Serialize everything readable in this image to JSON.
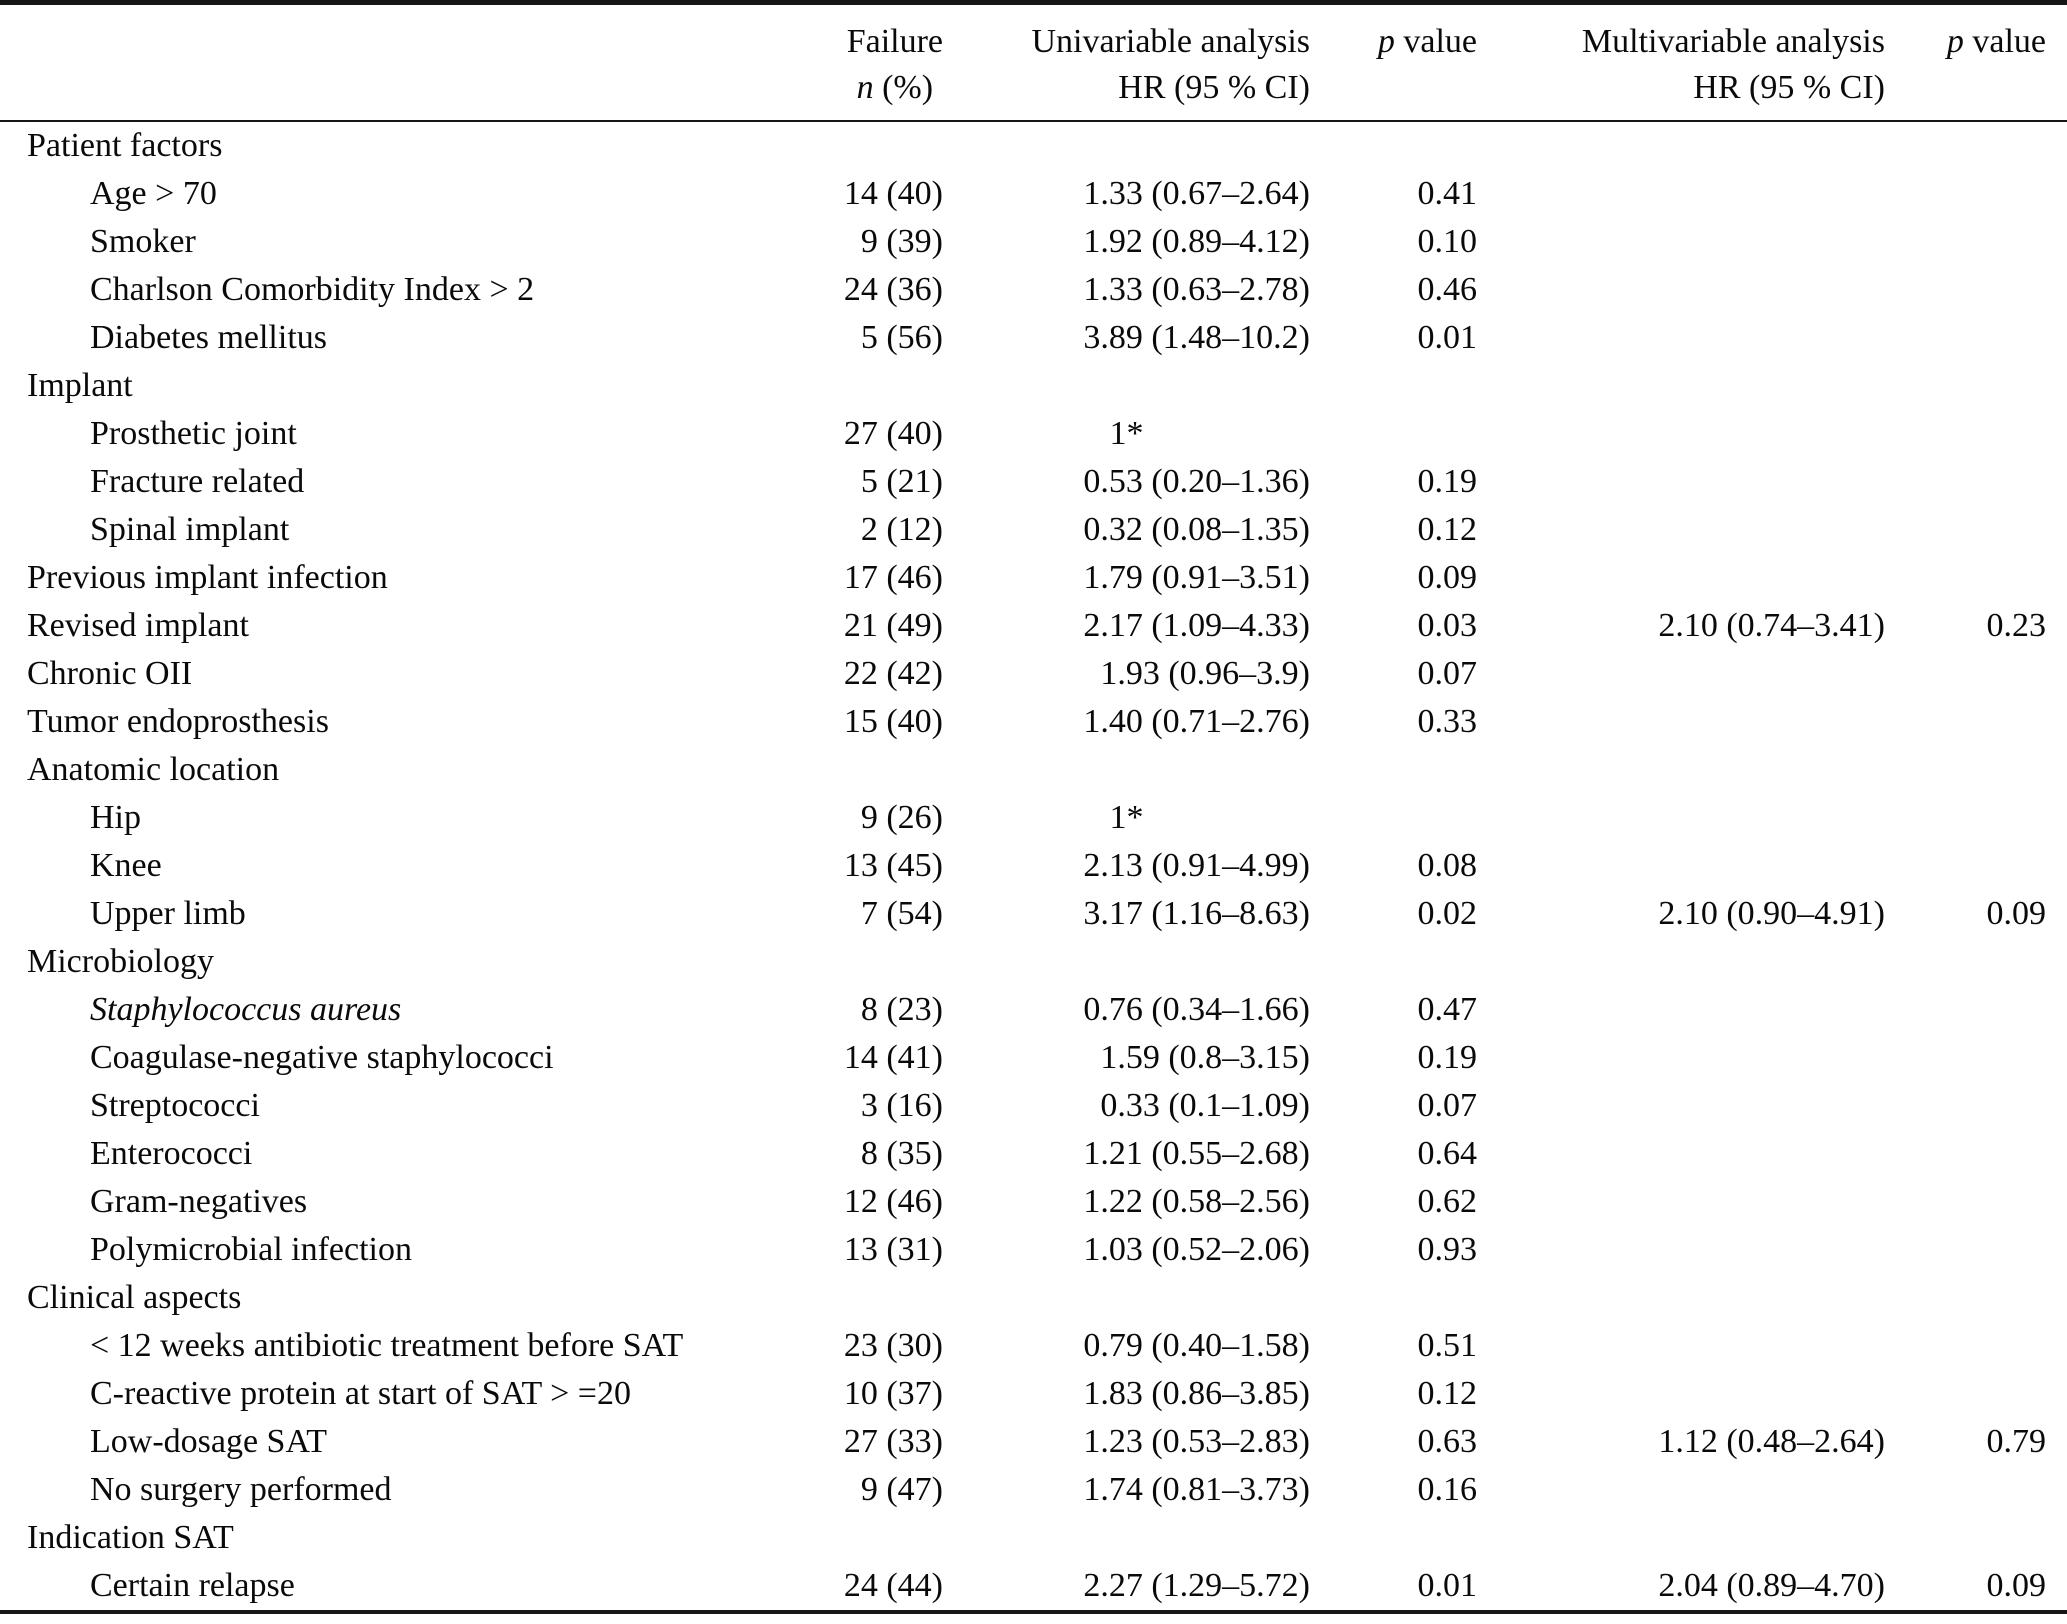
{
  "table": {
    "header": {
      "failure_line1": "Failure",
      "failure_n": "n",
      "failure_pct": " (%)",
      "uni_line1": "Univariable analysis",
      "uni_line2": "HR (95 % CI)",
      "p_italic": "p",
      "p_rest": " value",
      "multi_line1": "Multivariable analysis",
      "multi_line2": "HR (95 % CI)"
    },
    "rows": [
      {
        "label": "Patient factors",
        "type": "section",
        "failure": "",
        "uni": "",
        "p1": "",
        "multi": "",
        "p2": ""
      },
      {
        "label": "Age > 70",
        "type": "sub",
        "failure": "14 (40)",
        "uni": "1.33 (0.67–2.64)",
        "p1": "0.41",
        "multi": "",
        "p2": ""
      },
      {
        "label": "Smoker",
        "type": "sub",
        "failure": "9 (39)",
        "uni": "1.92 (0.89–4.12)",
        "p1": "0.10",
        "multi": "",
        "p2": ""
      },
      {
        "label": "Charlson Comorbidity Index > 2",
        "type": "sub",
        "failure": "24 (36)",
        "uni": "1.33 (0.63–2.78)",
        "p1": "0.46",
        "multi": "",
        "p2": ""
      },
      {
        "label": "Diabetes mellitus",
        "type": "sub",
        "failure": "5 (56)",
        "uni": "3.89 (1.48–10.2)",
        "p1": "0.01",
        "multi": "",
        "p2": ""
      },
      {
        "label": "Implant",
        "type": "section",
        "failure": "",
        "uni": "",
        "p1": "",
        "multi": "",
        "p2": ""
      },
      {
        "label": "Prosthetic joint",
        "type": "sub",
        "failure": "27 (40)",
        "uni": "1*",
        "ref": true,
        "p1": "",
        "multi": "",
        "p2": ""
      },
      {
        "label": "Fracture related",
        "type": "sub",
        "failure": "5 (21)",
        "uni": "0.53 (0.20–1.36)",
        "p1": "0.19",
        "multi": "",
        "p2": ""
      },
      {
        "label": "Spinal implant",
        "type": "sub",
        "failure": "2 (12)",
        "uni": "0.32 (0.08–1.35)",
        "p1": "0.12",
        "multi": "",
        "p2": ""
      },
      {
        "label": "Previous implant infection",
        "type": "section",
        "failure": "17 (46)",
        "uni": "1.79 (0.91–3.51)",
        "p1": "0.09",
        "multi": "",
        "p2": ""
      },
      {
        "label": "Revised implant",
        "type": "section",
        "failure": "21 (49)",
        "uni": "2.17 (1.09–4.33)",
        "p1": "0.03",
        "multi": "2.10 (0.74–3.41)",
        "p2": "0.23"
      },
      {
        "label": "Chronic OII",
        "type": "section",
        "failure": "22 (42)",
        "uni": "1.93 (0.96–3.9)",
        "p1": "0.07",
        "multi": "",
        "p2": ""
      },
      {
        "label": "Tumor endoprosthesis",
        "type": "section",
        "failure": "15 (40)",
        "uni": "1.40 (0.71–2.76)",
        "p1": "0.33",
        "multi": "",
        "p2": ""
      },
      {
        "label": "Anatomic location",
        "type": "section",
        "failure": "",
        "uni": "",
        "p1": "",
        "multi": "",
        "p2": ""
      },
      {
        "label": "Hip",
        "type": "sub",
        "failure": "9 (26)",
        "uni": "1*",
        "ref": true,
        "p1": "",
        "multi": "",
        "p2": ""
      },
      {
        "label": "Knee",
        "type": "sub",
        "failure": "13 (45)",
        "uni": "2.13 (0.91–4.99)",
        "p1": "0.08",
        "multi": "",
        "p2": ""
      },
      {
        "label": "Upper limb",
        "type": "sub",
        "failure": "7 (54)",
        "uni": "3.17 (1.16–8.63)",
        "p1": "0.02",
        "multi": "2.10 (0.90–4.91)",
        "p2": "0.09"
      },
      {
        "label": "Microbiology",
        "type": "section",
        "failure": "",
        "uni": "",
        "p1": "",
        "multi": "",
        "p2": ""
      },
      {
        "label": "Staphylococcus aureus",
        "type": "sub",
        "italic": true,
        "failure": "8 (23)",
        "uni": "0.76 (0.34–1.66)",
        "p1": "0.47",
        "multi": "",
        "p2": ""
      },
      {
        "label": "Coagulase-negative staphylococci",
        "type": "sub",
        "failure": "14 (41)",
        "uni": "1.59 (0.8–3.15)",
        "p1": "0.19",
        "multi": "",
        "p2": ""
      },
      {
        "label": "Streptococci",
        "type": "sub",
        "failure": "3 (16)",
        "uni": "0.33 (0.1–1.09)",
        "p1": "0.07",
        "multi": "",
        "p2": ""
      },
      {
        "label": "Enterococci",
        "type": "sub",
        "failure": "8 (35)",
        "uni": "1.21 (0.55–2.68)",
        "p1": "0.64",
        "multi": "",
        "p2": ""
      },
      {
        "label": "Gram-negatives",
        "type": "sub",
        "failure": "12 (46)",
        "uni": "1.22 (0.58–2.56)",
        "p1": "0.62",
        "multi": "",
        "p2": ""
      },
      {
        "label": "Polymicrobial infection",
        "type": "sub",
        "failure": "13 (31)",
        "uni": "1.03 (0.52–2.06)",
        "p1": "0.93",
        "multi": "",
        "p2": ""
      },
      {
        "label": "Clinical aspects",
        "type": "section",
        "failure": "",
        "uni": "",
        "p1": "",
        "multi": "",
        "p2": ""
      },
      {
        "label": "< 12 weeks antibiotic treatment before SAT",
        "type": "sub",
        "failure": "23 (30)",
        "uni": "0.79 (0.40–1.58)",
        "p1": "0.51",
        "multi": "",
        "p2": ""
      },
      {
        "label": "C-reactive protein at start of SAT > =20",
        "type": "sub",
        "failure": "10 (37)",
        "uni": "1.83 (0.86–3.85)",
        "p1": "0.12",
        "multi": "",
        "p2": ""
      },
      {
        "label": "Low-dosage SAT",
        "type": "sub",
        "failure": "27 (33)",
        "uni": "1.23 (0.53–2.83)",
        "p1": "0.63",
        "multi": "1.12 (0.48–2.64)",
        "p2": "0.79"
      },
      {
        "label": "No surgery performed",
        "type": "sub",
        "failure": "9 (47)",
        "uni": "1.74 (0.81–3.73)",
        "p1": "0.16",
        "multi": "",
        "p2": ""
      },
      {
        "label": "Indication SAT",
        "type": "section",
        "failure": "",
        "uni": "",
        "p1": "",
        "multi": "",
        "p2": ""
      },
      {
        "label": "Certain relapse",
        "type": "sub",
        "failure": "24 (44)",
        "uni": "2.27 (1.29–5.72)",
        "p1": "0.01",
        "multi": "2.04 (0.89–4.70)",
        "p2": "0.09"
      }
    ]
  }
}
